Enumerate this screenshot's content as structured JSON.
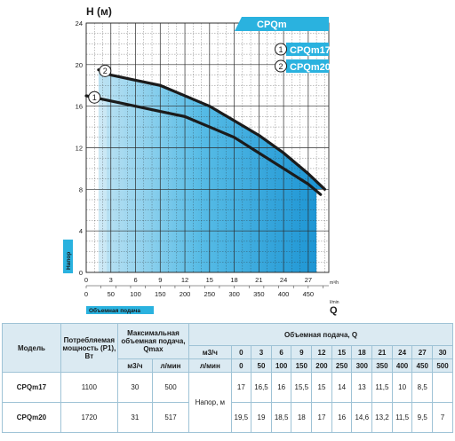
{
  "chart_data": {
    "type": "line",
    "title": "CPQm",
    "ylabel": "H (м)",
    "ylabel_vertical": "Напор",
    "xlabel_q": "Q",
    "xlabel_vertical": "Объемная подача",
    "x_unit_top": "m³/h",
    "x_unit_bottom": "l/min",
    "xlim_m3h": [
      0,
      29.5
    ],
    "ylim": [
      0,
      24
    ],
    "grid": true,
    "y_ticks": [
      "0",
      "4",
      "8",
      "12",
      "16",
      "20",
      "24"
    ],
    "x_ticks_top": [
      "0",
      "3",
      "6",
      "9",
      "12",
      "15",
      "18",
      "21",
      "24",
      "27"
    ],
    "x_ticks_bottom": [
      "0",
      "50",
      "100",
      "150",
      "200",
      "250",
      "300",
      "350",
      "400",
      "450"
    ],
    "series": [
      {
        "name": "CPQm17",
        "marker": "1",
        "x": [
          0,
          3,
          6,
          9,
          12,
          15,
          18,
          21,
          24,
          27,
          28.5
        ],
        "y": [
          17,
          16.5,
          16,
          15.5,
          15,
          14,
          13,
          11.5,
          10,
          8.5,
          7.5
        ]
      },
      {
        "name": "CPQm20",
        "marker": "2",
        "x": [
          1.5,
          3,
          6,
          9,
          12,
          15,
          18,
          21,
          24,
          27,
          29
        ],
        "y": [
          19.5,
          19,
          18.5,
          18,
          17,
          16,
          14.6,
          13.2,
          11.5,
          9.5,
          8
        ]
      }
    ]
  },
  "colors": {
    "fill_light": "#bfe3f3",
    "fill_mid": "#57bce6",
    "fill_dark": "#1a93d3",
    "curve": "#1b1b1b",
    "badge": "#2ab2df",
    "grid": "#2b2b2b",
    "table_header": "#dbeaf2",
    "table_border": "#9fc3d6"
  },
  "table": {
    "header": {
      "model": "Модель",
      "power": "Потребляемая мощность (P1), Вт",
      "qmax": "Максимальная объемная подача, Qmax",
      "qmax_m3": "м3/ч",
      "qmax_l": "л/мин",
      "flow_title": "Объемная подача, Q",
      "unit_m3": "м3/ч",
      "unit_l": "л/мин",
      "head_label": "Напор, м"
    },
    "flow_m3h": [
      "0",
      "3",
      "6",
      "9",
      "12",
      "15",
      "18",
      "21",
      "24",
      "27",
      "30"
    ],
    "flow_lmin": [
      "0",
      "50",
      "100",
      "150",
      "200",
      "250",
      "300",
      "350",
      "400",
      "450",
      "500"
    ],
    "rows": [
      {
        "model": "CPQm17",
        "power": "1100",
        "qmax_m3": "30",
        "qmax_l": "500",
        "head": [
          "17",
          "16,5",
          "16",
          "15,5",
          "15",
          "14",
          "13",
          "11,5",
          "10",
          "8,5",
          ""
        ]
      },
      {
        "model": "CPQm20",
        "power": "1720",
        "qmax_m3": "31",
        "qmax_l": "517",
        "head": [
          "19,5",
          "19",
          "18,5",
          "18",
          "17",
          "16",
          "14,6",
          "13,2",
          "11,5",
          "9,5",
          "7"
        ]
      }
    ]
  }
}
